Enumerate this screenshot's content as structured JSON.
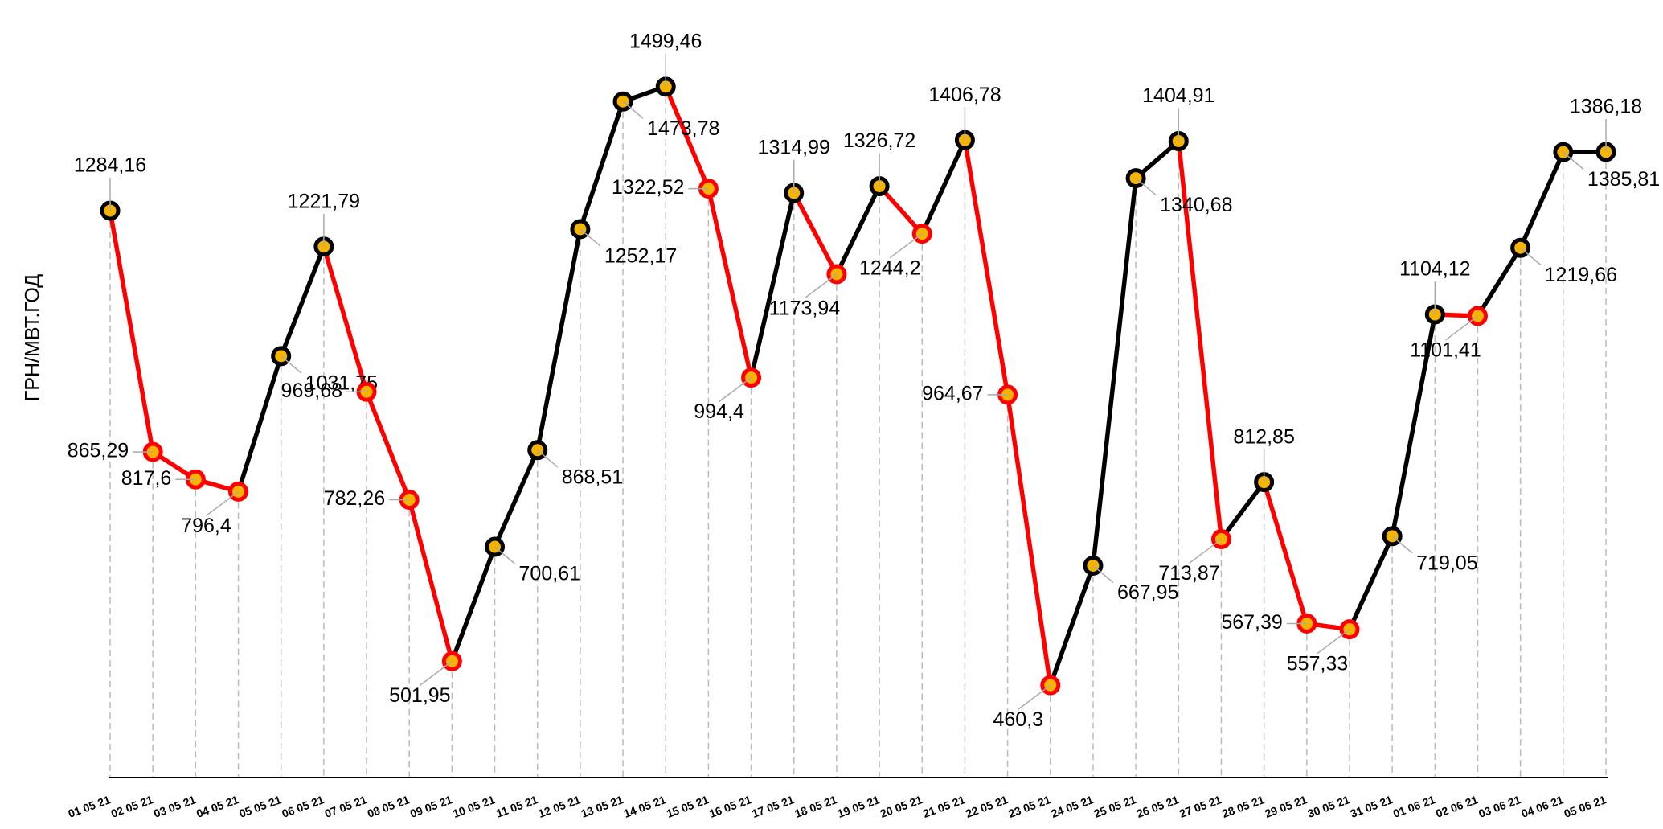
{
  "chart_data": {
    "type": "line",
    "y_label": "ГРН/МВТ.ГОД",
    "categories": [
      "01 05 21",
      "02 05 21",
      "03 05 21",
      "04 05 21",
      "05 05 21",
      "06 05 21",
      "07 05 21",
      "08 05 21",
      "09 05 21",
      "10 05 21",
      "11 05 21",
      "12 05 21",
      "13 05 21",
      "14 05 21",
      "15 05 21",
      "16 05 21",
      "17 05 21",
      "18 05 21",
      "19 05 21",
      "20 05 21",
      "21 05 21",
      "22 05 21",
      "23 05 21",
      "24 05 21",
      "25 05 21",
      "26 05 21",
      "27 05 21",
      "28 05 21",
      "29 05 21",
      "30 05 21",
      "31 05 21",
      "01 06 21",
      "02 06 21",
      "03 06 21",
      "04 06 21",
      "05 06 21"
    ],
    "values": [
      1284.16,
      865.29,
      817.6,
      796.4,
      1031.75,
      1221.79,
      969.68,
      782.26,
      501.95,
      700.61,
      868.51,
      1252.17,
      1473.78,
      1499.46,
      1322.52,
      994.4,
      1314.99,
      1173.94,
      1326.72,
      1244.2,
      1406.78,
      964.67,
      460.3,
      667.95,
      1340.68,
      1404.91,
      713.87,
      812.85,
      567.39,
      557.33,
      719.05,
      1104.12,
      1101.41,
      1219.66,
      1385.81,
      1386.18
    ],
    "value_labels": [
      "1284,16",
      "865,29",
      "817,6",
      "796,4",
      "1031,75",
      "1221,79",
      "969,68",
      "782,26",
      "501,95",
      "700,61",
      "868,51",
      "1252,17",
      "1473,78",
      "1499,46",
      "1322,52",
      "994,4",
      "1314,99",
      "1173,94",
      "1326,72",
      "1244,2",
      "1406,78",
      "964,67",
      "460,3",
      "667,95",
      "1340,68",
      "1404,91",
      "713,87",
      "812,85",
      "567,39",
      "557,33",
      "719,05",
      "1104,12",
      "1101,41",
      "1219,66",
      "1385,81",
      "1386,18"
    ],
    "rise_color": "#000000",
    "fall_color": "#ff0000",
    "marker_color": "#f5b400",
    "ylim": [
      300,
      1650
    ],
    "drop_lines": true
  }
}
